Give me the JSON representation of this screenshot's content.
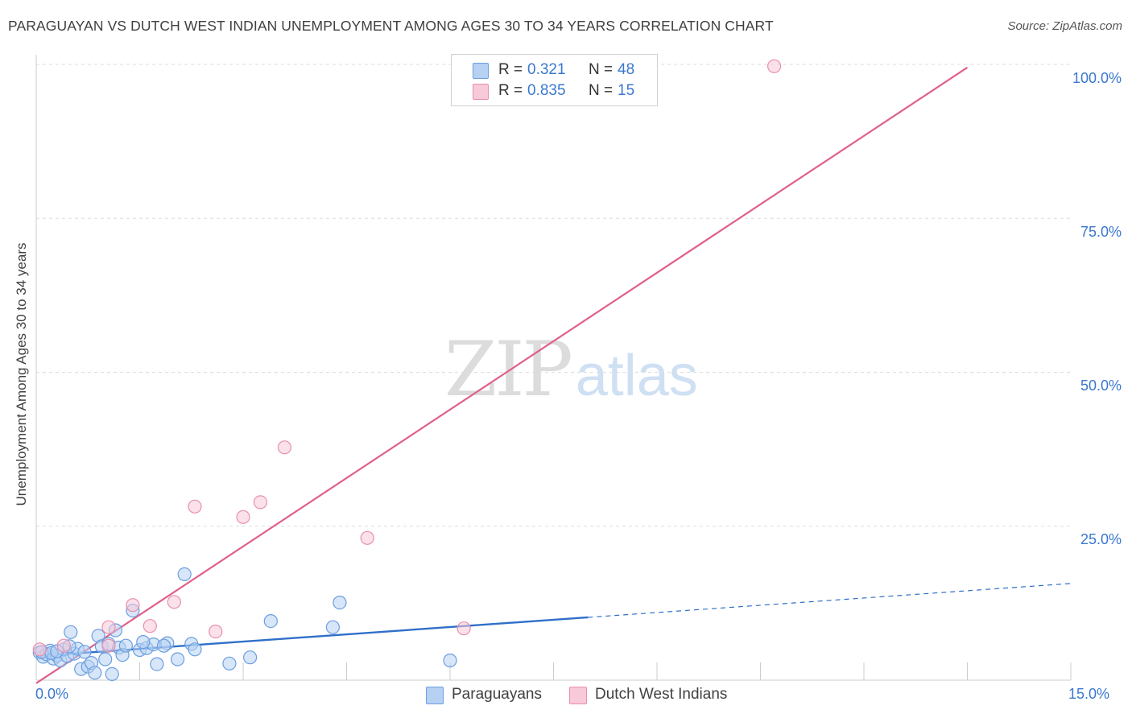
{
  "title": "PARAGUAYAN VS DUTCH WEST INDIAN UNEMPLOYMENT AMONG AGES 30 TO 34 YEARS CORRELATION CHART",
  "source": "Source: ZipAtlas.com",
  "watermark": {
    "part1": "ZIP",
    "part2": "atlas"
  },
  "legend": {
    "r_label": "R =",
    "n_label": "N =",
    "rows": [
      {
        "r": "0.321",
        "n": "48"
      },
      {
        "r": "0.835",
        "n": "15"
      }
    ]
  },
  "chart_data": {
    "type": "scatter",
    "title": "PARAGUAYAN VS DUTCH WEST INDIAN UNEMPLOYMENT AMONG AGES 30 TO 34 YEARS CORRELATION CHART",
    "xlabel": "",
    "ylabel": "Unemployment Among Ages 30 to 34 years",
    "xlim": [
      0,
      15
    ],
    "ylim": [
      0,
      100
    ],
    "x_tick_labels": [
      "0.0%",
      "15.0%"
    ],
    "y_ticks": [
      25,
      50,
      75,
      100
    ],
    "y_tick_labels": [
      "25.0%",
      "50.0%",
      "75.0%",
      "100.0%"
    ],
    "grid": true,
    "series": [
      {
        "name": "Paraguayans",
        "color": "#6b9ee0",
        "fill": "#b7d1f3",
        "r": 0.321,
        "n": 48,
        "trend": {
          "x0": 0,
          "y0": 3.9,
          "x1": 8.0,
          "y1": 10.2,
          "dash_to_x": 15.0,
          "dash_to_y": 15.7
        },
        "points": [
          [
            0.05,
            4.5
          ],
          [
            0.1,
            3.8
          ],
          [
            0.15,
            4.2
          ],
          [
            0.2,
            4.8
          ],
          [
            0.25,
            3.5
          ],
          [
            0.3,
            4.0
          ],
          [
            0.35,
            3.2
          ],
          [
            0.4,
            5.0
          ],
          [
            0.45,
            3.9
          ],
          [
            0.5,
            7.8
          ],
          [
            0.55,
            4.3
          ],
          [
            0.6,
            5.1
          ],
          [
            0.65,
            1.8
          ],
          [
            0.7,
            4.6
          ],
          [
            0.75,
            2.2
          ],
          [
            0.8,
            2.8
          ],
          [
            0.85,
            1.2
          ],
          [
            0.9,
            7.2
          ],
          [
            0.95,
            5.5
          ],
          [
            1.0,
            3.4
          ],
          [
            1.05,
            5.9
          ],
          [
            1.1,
            1.0
          ],
          [
            1.15,
            8.1
          ],
          [
            1.2,
            5.3
          ],
          [
            1.25,
            4.1
          ],
          [
            1.3,
            5.6
          ],
          [
            1.4,
            11.3
          ],
          [
            1.5,
            4.9
          ],
          [
            1.6,
            5.2
          ],
          [
            1.7,
            5.8
          ],
          [
            1.75,
            2.6
          ],
          [
            1.9,
            6.0
          ],
          [
            2.05,
            3.4
          ],
          [
            2.15,
            17.2
          ],
          [
            2.25,
            5.9
          ],
          [
            2.3,
            5.0
          ],
          [
            2.8,
            2.7
          ],
          [
            3.1,
            3.7
          ],
          [
            3.4,
            9.6
          ],
          [
            4.3,
            8.6
          ],
          [
            4.4,
            12.6
          ],
          [
            6.0,
            3.2
          ],
          [
            0.08,
            4.6
          ],
          [
            0.22,
            4.4
          ],
          [
            0.48,
            5.5
          ],
          [
            1.55,
            6.2
          ],
          [
            1.85,
            5.6
          ],
          [
            0.3,
            4.7
          ]
        ]
      },
      {
        "name": "Dutch West Indians",
        "color": "#e88fac",
        "fill": "#f8c9d8",
        "r": 0.835,
        "n": 15,
        "trend": {
          "x0": 0,
          "y0": -0.5,
          "x1": 13.5,
          "y1": 99.5
        },
        "points": [
          [
            0.05,
            5.0
          ],
          [
            0.4,
            5.6
          ],
          [
            1.05,
            5.6
          ],
          [
            1.05,
            8.6
          ],
          [
            1.4,
            12.2
          ],
          [
            1.65,
            8.8
          ],
          [
            2.0,
            12.7
          ],
          [
            2.3,
            28.2
          ],
          [
            2.6,
            7.9
          ],
          [
            3.0,
            26.5
          ],
          [
            3.25,
            28.9
          ],
          [
            3.6,
            37.8
          ],
          [
            4.8,
            23.1
          ],
          [
            6.2,
            8.4
          ],
          [
            10.7,
            99.7
          ]
        ]
      }
    ]
  }
}
